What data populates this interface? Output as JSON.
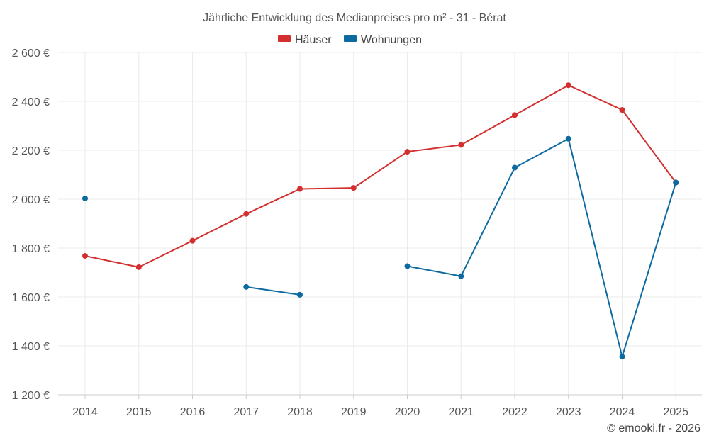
{
  "chart_data": {
    "type": "line",
    "title": "Jährliche Entwicklung des Medianpreises pro m² - 31 - Bérat",
    "categories": [
      "2014",
      "2015",
      "2016",
      "2017",
      "2018",
      "2019",
      "2020",
      "2021",
      "2022",
      "2023",
      "2024",
      "2025"
    ],
    "ylim": [
      1200,
      2600
    ],
    "yticks": [
      1200,
      1400,
      1600,
      1800,
      2000,
      2200,
      2400,
      2600
    ],
    "ytick_labels": [
      "1 200 €",
      "1 400 €",
      "1 600 €",
      "1 800 €",
      "2 000 €",
      "2 200 €",
      "2 400 €",
      "2 600 €"
    ],
    "grid": true,
    "legend_position": "top-center",
    "series": [
      {
        "name": "Häuser",
        "color": "#d32f2f",
        "values": [
          1768,
          1722,
          1830,
          1940,
          2042,
          2046,
          2194,
          2222,
          2344,
          2466,
          2365,
          2068
        ]
      },
      {
        "name": "Wohnungen",
        "color": "#0d6aa0",
        "values": [
          2003,
          null,
          null,
          1641,
          1609,
          null,
          1726,
          1685,
          2129,
          2247,
          1356,
          2068
        ]
      }
    ]
  },
  "credit": "© emooki.fr - 2026"
}
